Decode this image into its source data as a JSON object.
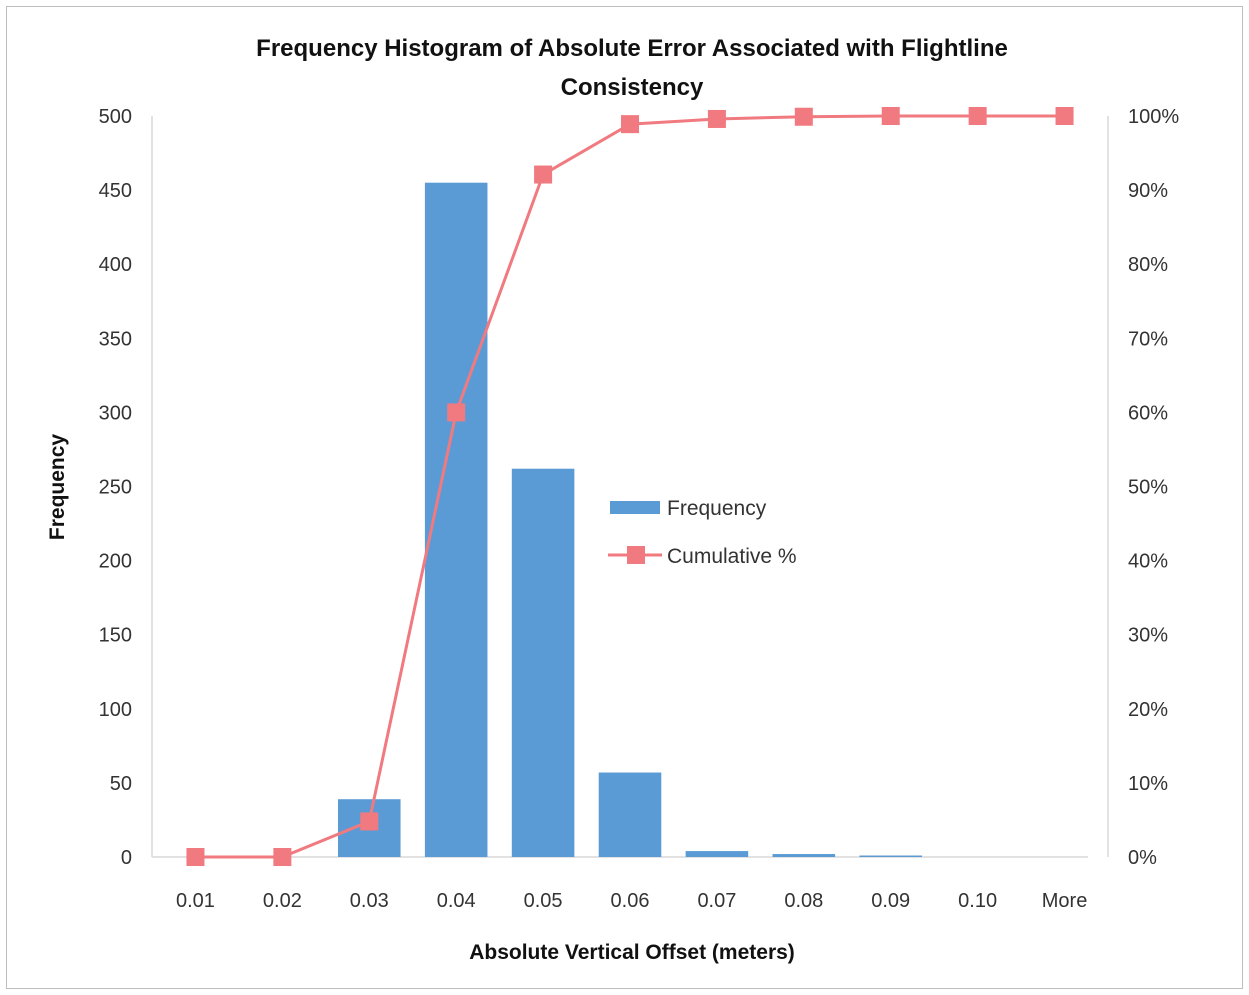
{
  "chart_data": {
    "type": "bar",
    "title_lines": [
      "Frequency Histogram of Absolute Error Associated with Flightline",
      "Consistency"
    ],
    "xlabel": "Absolute Vertical Offset (meters)",
    "ylabel": "Frequency",
    "categories": [
      "0.01",
      "0.02",
      "0.03",
      "0.04",
      "0.05",
      "0.06",
      "0.07",
      "0.08",
      "0.09",
      "0.10",
      "More"
    ],
    "ylim": [
      0,
      500
    ],
    "y_ticks": [
      "0",
      "50",
      "100",
      "150",
      "200",
      "250",
      "300",
      "350",
      "400",
      "450",
      "500"
    ],
    "y2lim": [
      0,
      100
    ],
    "y2_ticks": [
      "0%",
      "10%",
      "20%",
      "30%",
      "40%",
      "50%",
      "60%",
      "70%",
      "80%",
      "90%",
      "100%"
    ],
    "series": [
      {
        "name": "Frequency",
        "type": "bar",
        "axis": "left",
        "color": "#5b9bd5",
        "values": [
          0,
          0,
          39,
          455,
          262,
          57,
          4,
          2,
          1,
          0,
          0
        ]
      },
      {
        "name": "Cumulative %",
        "type": "line",
        "axis": "right",
        "color": "#f07a7f",
        "values": [
          0,
          0,
          4.8,
          60.0,
          92.1,
          98.9,
          99.6,
          99.9,
          100,
          100,
          100
        ]
      }
    ],
    "legend_position": "center-right",
    "grid": false
  }
}
